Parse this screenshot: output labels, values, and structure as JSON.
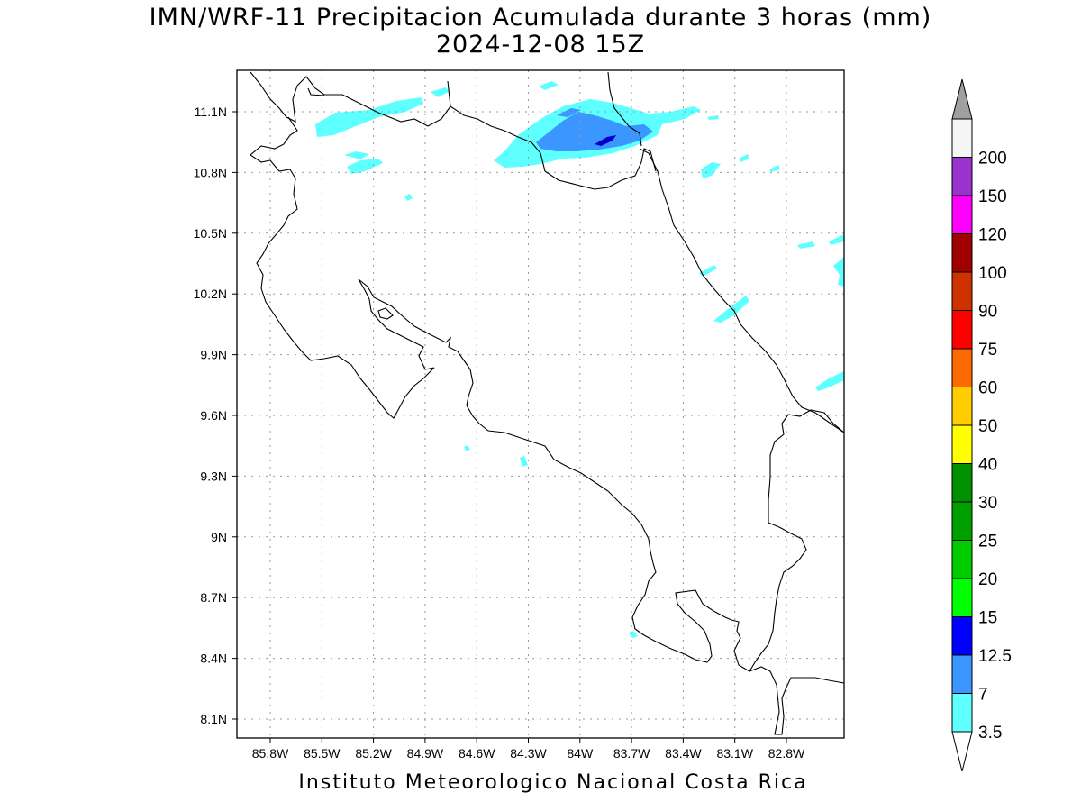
{
  "title": {
    "line1": "IMN/WRF-11 Precipitacion Acumulada durante 3 horas (mm)",
    "line2": "2024-12-08 15Z"
  },
  "footer": "Instituto Meteorologico Nacional Costa Rica",
  "map": {
    "lon_labels": [
      "85.8W",
      "85.5W",
      "85.2W",
      "84.9W",
      "84.6W",
      "84.3W",
      "84W",
      "83.7W",
      "83.4W",
      "83.1W",
      "82.8W"
    ],
    "lat_labels": [
      "11.1N",
      "10.8N",
      "10.5N",
      "10.2N",
      "9.9N",
      "9.6N",
      "9.3N",
      "9N",
      "8.7N",
      "8.4N",
      "8.1N"
    ],
    "grid": "dotted"
  },
  "colorbar": {
    "labels": [
      "3.5",
      "7",
      "12.5",
      "15",
      "20",
      "25",
      "30",
      "40",
      "50",
      "60",
      "75",
      "90",
      "100",
      "120",
      "150",
      "200"
    ],
    "colors": [
      "#5effff",
      "#3c96ff",
      "#0000ff",
      "#00ff00",
      "#00cd00",
      "#00a000",
      "#009000",
      "#ffff00",
      "#ffcd00",
      "#ff6a00",
      "#ff0000",
      "#cd3200",
      "#a00000",
      "#ff00ff",
      "#9a32cd",
      "#f5f5f5"
    ],
    "arrow_low": "#ffffff",
    "arrow_high": "#a0a0a0"
  },
  "precip_colors": {
    "light": "#5effff",
    "medium": "#3c96ff",
    "heavy": "#0000cd"
  }
}
